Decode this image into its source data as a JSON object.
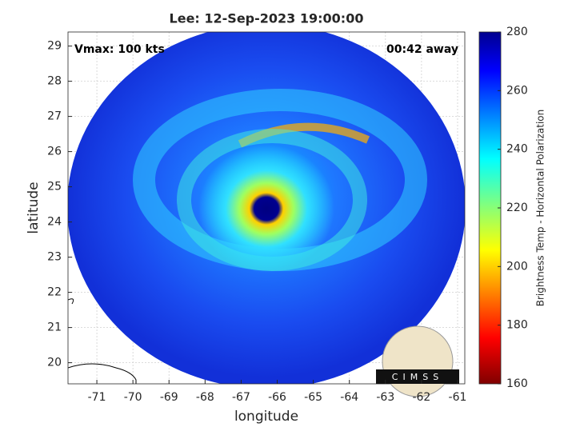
{
  "title": "Lee: 12-Sep-2023 19:00:00",
  "annotations": {
    "intensity": "Vmax: 100 kts",
    "time_offset": "00:42 away"
  },
  "x_axis": {
    "label": "longitude",
    "lim": [
      -71.8,
      -60.8
    ],
    "ticks": [
      -71,
      -70,
      -69,
      -68,
      -67,
      -66,
      -65,
      -64,
      -63,
      -62,
      -61
    ]
  },
  "y_axis": {
    "label": "latitude",
    "lim": [
      19.4,
      29.4
    ],
    "ticks": [
      20,
      21,
      22,
      23,
      24,
      25,
      26,
      27,
      28,
      29
    ]
  },
  "colorbar": {
    "label": "Brightness Temp - Horizontal Polarization",
    "lim": [
      160,
      280
    ],
    "ticks": [
      160,
      180,
      200,
      220,
      240,
      260,
      280
    ]
  },
  "logo": "CIMSS"
}
